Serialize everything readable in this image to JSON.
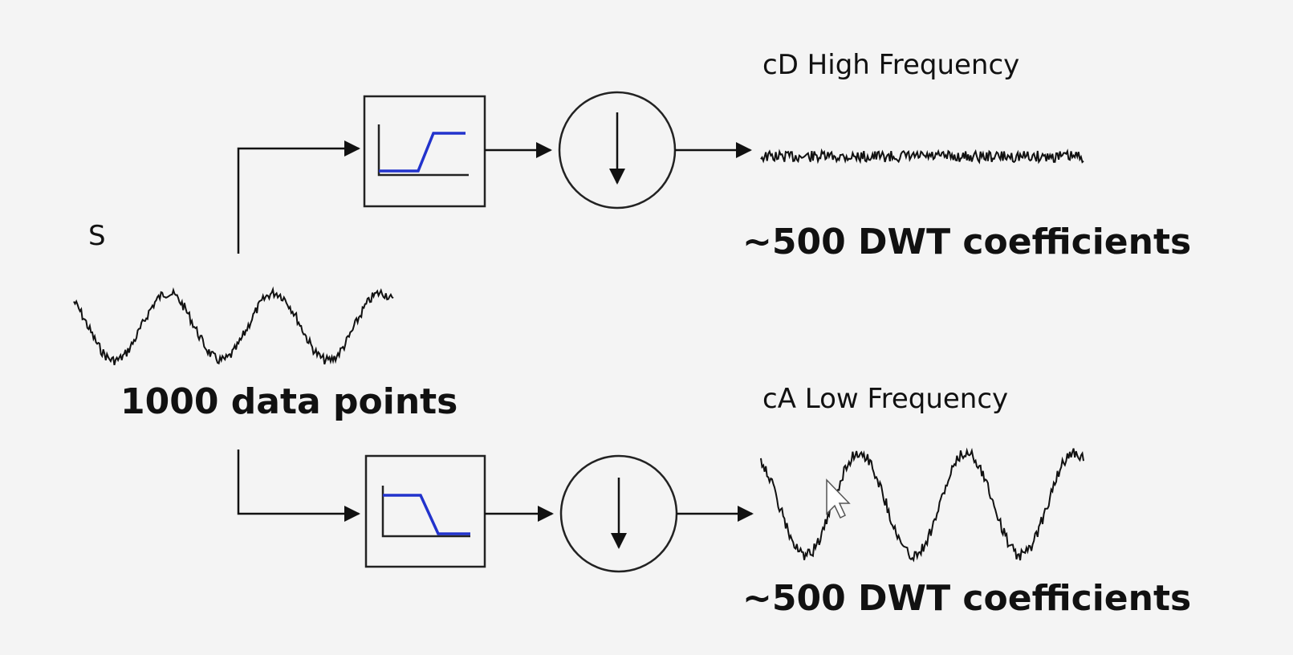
{
  "labels": {
    "signal": "S",
    "data_points": "1000 data points",
    "detail": "cD   High Frequency",
    "approx": "cA   Low Frequency",
    "detail_coeffs": "~500 DWT coefficients",
    "approx_coeffs": "~500 DWT coefficients"
  },
  "icons": {
    "high_pass": "high-pass-filter-icon",
    "low_pass": "low-pass-filter-icon",
    "downsample": "downsample-arrow-icon"
  },
  "colors": {
    "filter_response": "#2233cc",
    "stroke": "#111111",
    "background": "#f4f4f4"
  }
}
